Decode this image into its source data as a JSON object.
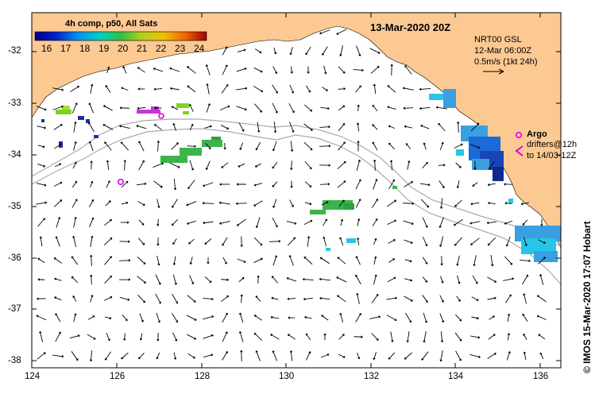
{
  "title": "13-Mar-2020 20Z",
  "colorbar": {
    "title": "4h comp, p50, All Sats",
    "ticks": [
      "16",
      "17",
      "18",
      "19",
      "20",
      "21",
      "22",
      "23",
      "24"
    ],
    "min": 15.5,
    "max": 24.5
  },
  "velocity_legend": {
    "line1": "NRT00 GSL",
    "line2": "12-Mar 06:00Z",
    "line3": "0.5m/s (1kt 24h)"
  },
  "argo_legend": {
    "argo_label": "Argo",
    "drifter_line1": "drifters@12h",
    "drifter_line2": "to 14/03-12Z",
    "argo_color": "#e000e0"
  },
  "credit": "© IMOS 15-Mar-2020 17:07 Hobart",
  "axes": {
    "lon_ticks": [
      "124",
      "126",
      "128",
      "130",
      "132",
      "134",
      "136"
    ],
    "lat_ticks": [
      "-32",
      "-33",
      "-34",
      "-35",
      "-36",
      "-37",
      "-38"
    ],
    "lon_range": [
      124,
      136.5
    ],
    "lat_range": [
      -31.35,
      -38.15
    ]
  },
  "colors": {
    "land": "#fcc992",
    "isobath": "#aaaaaa",
    "arrow": "#000000"
  }
}
